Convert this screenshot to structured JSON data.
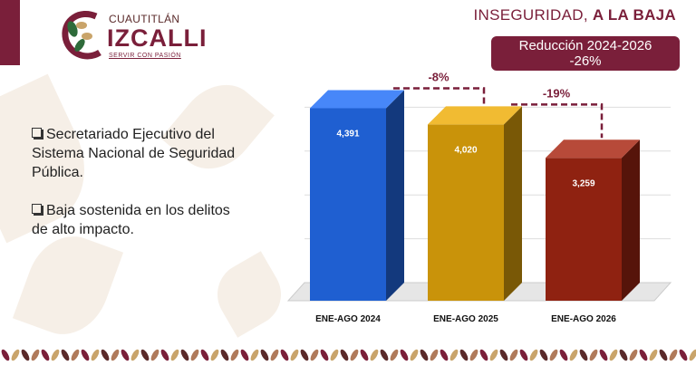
{
  "logo": {
    "top": "CUAUTITLÁN",
    "main": "IZCALLI",
    "tagline": "SERVIR CON PASIÓN"
  },
  "header": {
    "title_regular": "INSEGURIDAD, ",
    "title_bold": "A LA BAJA"
  },
  "badge": {
    "line1": "Reducción 2024-2026",
    "line2": "-26%"
  },
  "bullets": [
    "Secretariado Ejecutivo del Sistema Nacional de Seguridad Pública.",
    "Baja sostenida en los delitos de alto impacto."
  ],
  "colors": {
    "brand": "#7a1f3a",
    "bar_2024": "#1f5fd1",
    "bar_2025": "#c9930a",
    "bar_2026": "#8f2211"
  },
  "chart_data": {
    "type": "bar",
    "categories": [
      "ENE-AGO 2024",
      "ENE-AGO 2025",
      "ENE-AGO 2026"
    ],
    "values": [
      4391,
      4020,
      3259
    ],
    "value_labels": [
      "4,391",
      "4,020",
      "3,259"
    ],
    "annotations": [
      {
        "from": 0,
        "to": 1,
        "label": "-8%"
      },
      {
        "from": 1,
        "to": 2,
        "label": "-19%"
      }
    ],
    "ylim": [
      0,
      5000
    ],
    "grid": true,
    "style": "3d"
  }
}
